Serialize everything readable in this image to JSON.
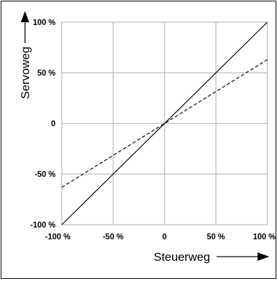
{
  "chart_data": {
    "type": "line",
    "title": "",
    "xlabel": "Steuerweg",
    "ylabel": "Servoweg",
    "xlim": [
      -100,
      100
    ],
    "ylim": [
      -100,
      100
    ],
    "grid": true,
    "x_ticks": [
      -100,
      -50,
      0,
      50,
      100
    ],
    "y_ticks": [
      -100,
      -50,
      0,
      50,
      100
    ],
    "x_tick_labels": [
      "-100 %",
      "-50 %",
      "0",
      "50 %",
      "100 %"
    ],
    "y_tick_labels": [
      "-100 %",
      "-50 %",
      "0",
      "50 %",
      "100 %"
    ],
    "series": [
      {
        "style": "solid",
        "color": "#000000",
        "x": [
          -100,
          100
        ],
        "y": [
          -100,
          100
        ]
      },
      {
        "style": "dashed",
        "color": "#000000",
        "x": [
          -100,
          100
        ],
        "y": [
          -63,
          63
        ]
      }
    ]
  }
}
